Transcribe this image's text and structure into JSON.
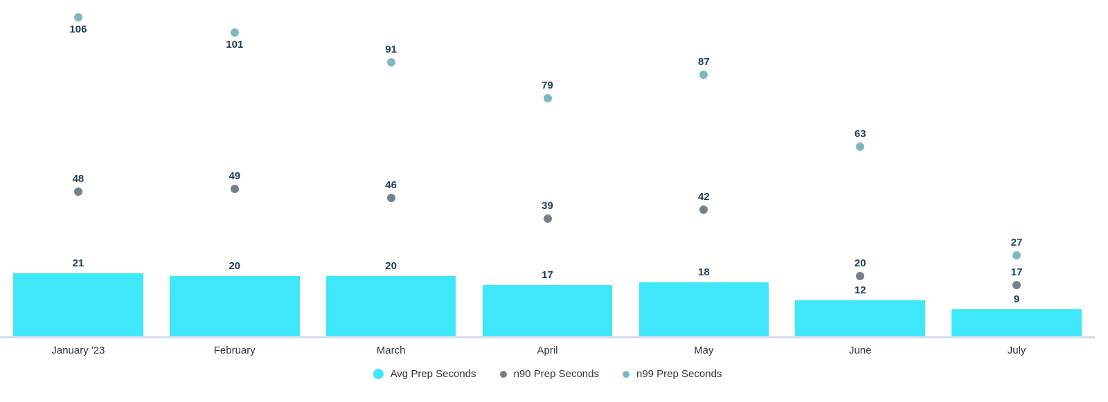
{
  "chart_data": {
    "type": "bar",
    "title": "",
    "xlabel": "",
    "ylabel": "",
    "ylim": [
      0,
      112
    ],
    "grid": false,
    "legend_position": "bottom",
    "value_labels": true,
    "categories": [
      "January '23",
      "February",
      "March",
      "April",
      "May",
      "June",
      "July"
    ],
    "series": [
      {
        "name": "Avg Prep Seconds",
        "type": "bar",
        "color": "#3EE8FA",
        "values": [
          21,
          20,
          20,
          17,
          18,
          12,
          9
        ]
      },
      {
        "name": "n90 Prep Seconds",
        "type": "scatter",
        "color": "#73818D",
        "values": [
          48,
          49,
          46,
          39,
          42,
          20,
          17
        ],
        "label_positions": [
          "above",
          "above",
          "above",
          "above",
          "above",
          "above",
          "above"
        ]
      },
      {
        "name": "n99 Prep Seconds",
        "type": "scatter",
        "color": "#7DB8C1",
        "values": [
          106,
          101,
          91,
          79,
          87,
          63,
          27
        ],
        "label_positions": [
          "below",
          "below",
          "above",
          "above",
          "above",
          "above",
          "above"
        ]
      }
    ]
  },
  "colors": {
    "background": "#FFFFFF",
    "axis_line": "#D7DEEB",
    "value_label": "#1C3D52",
    "axis_label": "#2A333C"
  }
}
